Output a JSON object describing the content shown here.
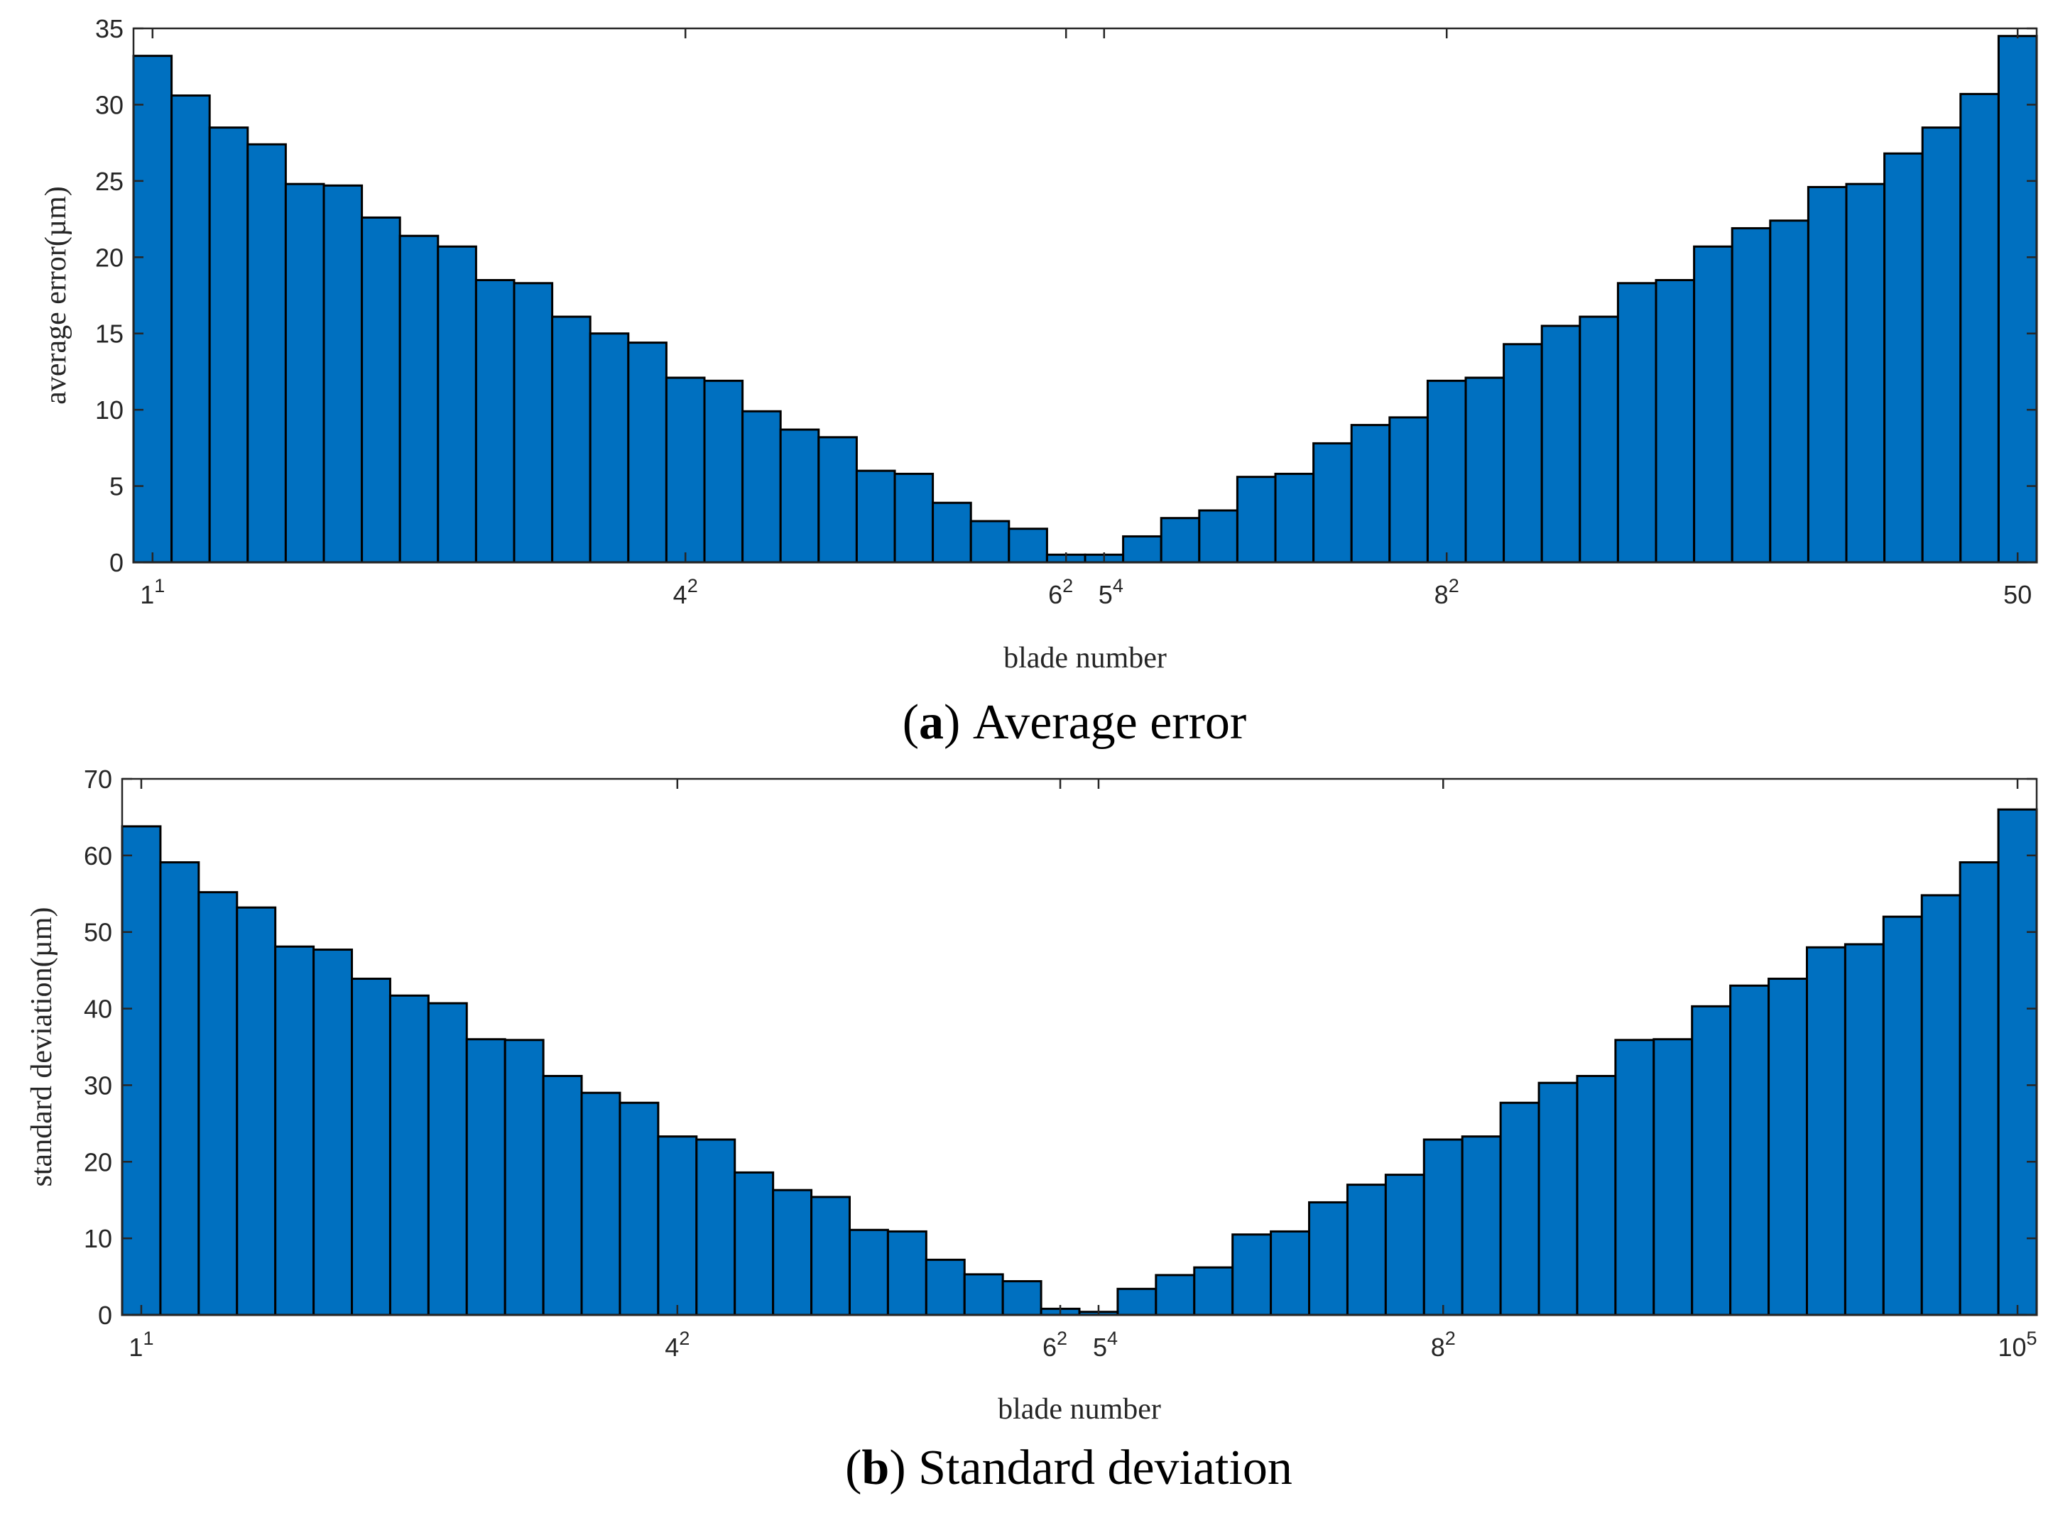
{
  "colors": {
    "bar": "#0070c0",
    "bar_edge": "#000000",
    "axis": "#262626",
    "background": "#ffffff"
  },
  "chart_data": [
    {
      "id": "a",
      "type": "bar",
      "caption_letter": "a",
      "caption_text": "Average error",
      "xlabel": "blade number",
      "ylabel": "average error(µm)",
      "ylim": [
        0,
        35
      ],
      "yticks": [
        "0",
        "5",
        "10",
        "15",
        "20",
        "25",
        "30",
        "35"
      ],
      "xticks": [
        {
          "pos": 1,
          "base": "1",
          "sup": "1"
        },
        {
          "pos": 15,
          "base": "4",
          "sup": "2"
        },
        {
          "pos": 25,
          "base": "6",
          "sup": "2"
        },
        {
          "pos": 26,
          "base": "5",
          "sup": "4"
        },
        {
          "pos": 35,
          "base": "8",
          "sup": "2"
        },
        {
          "pos": 50,
          "base": "50",
          "sup": ""
        }
      ],
      "values": [
        33.2,
        30.6,
        28.5,
        27.4,
        24.8,
        24.7,
        22.6,
        21.4,
        20.7,
        18.5,
        18.3,
        16.1,
        15.0,
        14.4,
        12.1,
        11.9,
        9.9,
        8.7,
        8.2,
        6.0,
        5.8,
        3.9,
        2.7,
        2.2,
        0.5,
        0.5,
        1.7,
        2.9,
        3.4,
        5.6,
        5.8,
        7.8,
        9.0,
        9.5,
        11.9,
        12.1,
        14.3,
        15.5,
        16.1,
        18.3,
        18.5,
        20.7,
        21.9,
        22.4,
        24.6,
        24.8,
        26.8,
        28.5,
        30.7,
        34.5
      ]
    },
    {
      "id": "b",
      "type": "bar",
      "caption_letter": "b",
      "caption_text": "Standard deviation",
      "xlabel": "blade number",
      "ylabel": "standard deviation(µm)",
      "ylim": [
        0,
        70
      ],
      "yticks": [
        "0",
        "10",
        "20",
        "30",
        "40",
        "50",
        "60",
        "70"
      ],
      "xticks": [
        {
          "pos": 1,
          "base": "1",
          "sup": "1"
        },
        {
          "pos": 15,
          "base": "4",
          "sup": "2"
        },
        {
          "pos": 25,
          "base": "6",
          "sup": "2"
        },
        {
          "pos": 26,
          "base": "5",
          "sup": "4"
        },
        {
          "pos": 35,
          "base": "8",
          "sup": "2"
        },
        {
          "pos": 50,
          "base": "10",
          "sup": "5"
        }
      ],
      "values": [
        63.8,
        59.1,
        55.2,
        53.2,
        48.1,
        47.7,
        43.9,
        41.7,
        40.7,
        36.0,
        35.9,
        31.2,
        29.0,
        27.7,
        23.3,
        22.9,
        18.6,
        16.3,
        15.4,
        11.1,
        10.9,
        7.2,
        5.3,
        4.4,
        0.8,
        0.4,
        3.4,
        5.2,
        6.2,
        10.5,
        10.9,
        14.7,
        17.0,
        18.3,
        22.9,
        23.3,
        27.7,
        30.3,
        31.2,
        35.9,
        36.0,
        40.3,
        43.0,
        43.9,
        48.0,
        48.4,
        52.0,
        54.8,
        59.1,
        66.0
      ]
    }
  ]
}
